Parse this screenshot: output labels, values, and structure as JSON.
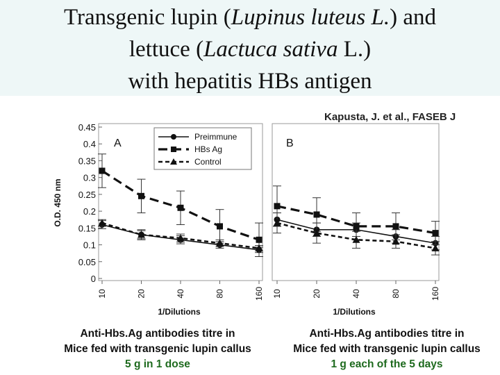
{
  "title": {
    "line1_a": "Transgenic lupin (",
    "line1_b": "Lupinus luteus L.",
    "line1_c": ") and",
    "line2_a": "lettuce (",
    "line2_b": "Lactuca sativa",
    "line2_c": " L.)",
    "line3": "with hepatitis HBs antigen"
  },
  "citation": "Kapusta, J. et al.,  FASEB J",
  "captions": {
    "left": {
      "line1": "Anti-Hbs.Ag antibodies titre in",
      "line2": "Mice fed with transgenic lupin callus",
      "line3": "5 g in 1 dose"
    },
    "right": {
      "line1": "Anti-Hbs.Ag antibodies titre in",
      "line2": "Mice fed with transgenic lupin callus",
      "line3": "1 g each of the 5 days"
    }
  },
  "chart_data": [
    {
      "type": "line",
      "panel_label": "A",
      "ylabel": "O.D. 450 nm",
      "xlabel": "1/Dilutions",
      "categories": [
        "10",
        "20",
        "40",
        "80",
        "160"
      ],
      "y_ticks": [
        "0",
        "0.05",
        "0.1",
        "0.15",
        "0.2",
        "0.25",
        "0.3",
        "0.35",
        "0.4",
        "0.45"
      ],
      "ylim": [
        0,
        0.45
      ],
      "grid": false,
      "legend_position": "top-right",
      "series": [
        {
          "name": "Preimmune",
          "marker": "circle",
          "style": "solid",
          "values": [
            0.16,
            0.13,
            0.115,
            0.1,
            0.085
          ],
          "errors": [
            0.012,
            0.015,
            0.012,
            0.01,
            0.008
          ]
        },
        {
          "name": "HBs Ag",
          "marker": "square",
          "style": "long-dash",
          "values": [
            0.32,
            0.245,
            0.21,
            0.155,
            0.115
          ],
          "errors": [
            0.05,
            0.05,
            0.05,
            0.05,
            0.05
          ]
        },
        {
          "name": "Control",
          "marker": "triangle",
          "style": "short-dash",
          "values": [
            0.165,
            0.13,
            0.12,
            0.105,
            0.09
          ],
          "errors": [
            0.01,
            0.012,
            0.012,
            0.01,
            0.008
          ]
        }
      ]
    },
    {
      "type": "line",
      "panel_label": "B",
      "xlabel": "1/Dilutions",
      "categories": [
        "10",
        "20",
        "40",
        "80",
        "160"
      ],
      "ylim": [
        0,
        0.45
      ],
      "grid": false,
      "series": [
        {
          "name": "Preimmune",
          "marker": "circle",
          "style": "solid",
          "values": [
            0.175,
            0.145,
            0.145,
            0.125,
            0.105
          ],
          "errors": [
            0.02,
            0.02,
            0.02,
            0.02,
            0.02
          ]
        },
        {
          "name": "HBs Ag",
          "marker": "square",
          "style": "long-dash",
          "values": [
            0.215,
            0.19,
            0.155,
            0.155,
            0.135
          ],
          "errors": [
            0.06,
            0.05,
            0.04,
            0.04,
            0.035
          ]
        },
        {
          "name": "Control",
          "marker": "triangle",
          "style": "short-dash",
          "values": [
            0.165,
            0.135,
            0.115,
            0.11,
            0.09
          ],
          "errors": [
            0.03,
            0.03,
            0.025,
            0.02,
            0.02
          ]
        }
      ]
    }
  ]
}
